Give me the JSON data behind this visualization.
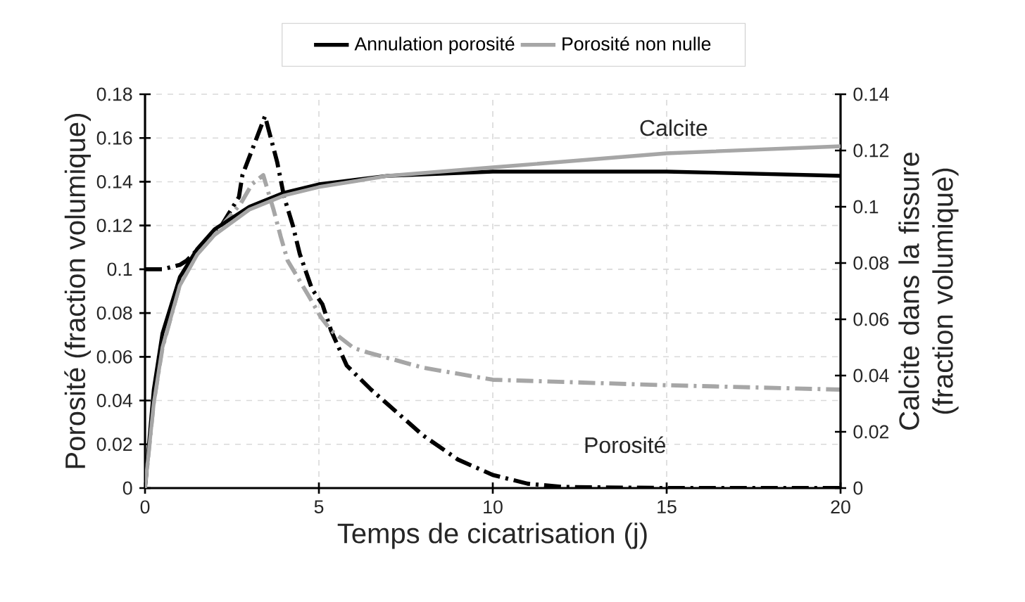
{
  "chart_data": {
    "type": "line",
    "xlabel": "Temps de cicatrisation (j)",
    "ylabel": "Porosité (fraction volumique)",
    "y2label": "Calcite dans la fissure (fraction volumique)",
    "xlim": [
      0,
      20
    ],
    "xticks": [
      0,
      5,
      10,
      15,
      20
    ],
    "ylim": [
      0,
      0.18
    ],
    "yticks": [
      0,
      0.02,
      0.04,
      0.06,
      0.08,
      0.1,
      0.12,
      0.14,
      0.16,
      0.18
    ],
    "y2lim": [
      0,
      0.14
    ],
    "y2ticks": [
      0,
      0.02,
      0.04,
      0.06,
      0.08,
      0.1,
      0.12,
      0.14
    ],
    "grid": true,
    "legend": "top",
    "line_style": "solid",
    "series": [
      {
        "name": "Annulation porosité",
        "color": "#000000",
        "axis": "y2",
        "x": [
          0,
          0.25,
          0.5,
          1,
          1.5,
          2,
          3,
          4,
          5,
          7,
          10,
          15,
          20
        ],
        "values": [
          0,
          0.035,
          0.055,
          0.075,
          0.085,
          0.092,
          0.1,
          0.105,
          0.108,
          0.111,
          0.1125,
          0.1125,
          0.111
        ]
      },
      {
        "name": "Porosité non nulle",
        "color": "#a6a6a6",
        "axis": "y2",
        "x": [
          0,
          0.25,
          0.5,
          1,
          1.5,
          2,
          3,
          4,
          5,
          7,
          10,
          15,
          20
        ],
        "values": [
          0,
          0.03,
          0.05,
          0.072,
          0.083,
          0.09,
          0.099,
          0.104,
          0.107,
          0.111,
          0.114,
          0.119,
          0.1215
        ]
      },
      {
        "color": "#000000",
        "line_style": "dashdot",
        "x": [
          0,
          0.5,
          1,
          1.2,
          2.2,
          2.7,
          2.8,
          3.45,
          3.8,
          4.0,
          4.25,
          4.45,
          4.8,
          5.1,
          5.35,
          5.8,
          6.5,
          7,
          8,
          9,
          10,
          11,
          12,
          15,
          20
        ],
        "values": [
          0.1,
          0.1,
          0.102,
          0.104,
          0.12,
          0.133,
          0.143,
          0.17,
          0.149,
          0.133,
          0.12,
          0.107,
          0.091,
          0.084,
          0.072,
          0.056,
          0.045,
          0.038,
          0.024,
          0.013,
          0.006,
          0.002,
          0.0005,
          0,
          0
        ]
      },
      {
        "color": "#a6a6a6",
        "line_style": "dashdot",
        "x": [
          0,
          0.25,
          0.5,
          1,
          1.5,
          2,
          2.75,
          3.08,
          3.4,
          3.7,
          3.9,
          4.1,
          4.7,
          5.06,
          5.35,
          6,
          6.4,
          8,
          10,
          15,
          20
        ],
        "values": [
          0,
          0.039,
          0.064,
          0.093,
          0.107,
          0.116,
          0.13,
          0.139,
          0.143,
          0.127,
          0.115,
          0.104,
          0.088,
          0.078,
          0.072,
          0.064,
          0.062,
          0.055,
          0.0495,
          0.047,
          0.045
        ]
      }
    ],
    "annotations": [
      "Calcite",
      "Porosité"
    ]
  }
}
